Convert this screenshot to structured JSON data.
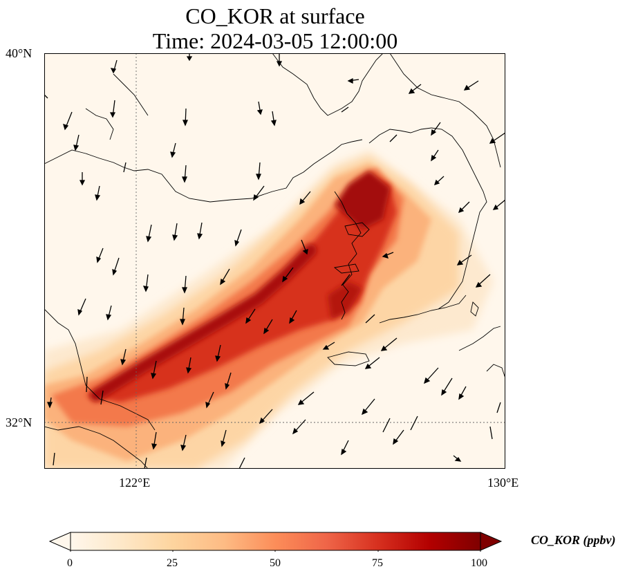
{
  "title_line1": "CO_KOR at surface",
  "title_line2": "Time: 2024-03-05 12:00:00",
  "axes": {
    "lat_ticks": [
      "40°N",
      "32°N"
    ],
    "lon_ticks": [
      "122°E",
      "130°E"
    ]
  },
  "colorbar": {
    "label": "CO_KOR (ppbv)",
    "ticks": [
      "0",
      "25",
      "50",
      "75",
      "100"
    ],
    "colormap": "OrRd",
    "extend": "both",
    "min": 0,
    "max": 100
  },
  "map": {
    "projection": "Lambert conformal",
    "lon_range": [
      120,
      130
    ],
    "lat_range": [
      31,
      40
    ],
    "gridlines": "dotted",
    "features": [
      "coastline",
      "wind vectors",
      "CO concentration field"
    ]
  }
}
